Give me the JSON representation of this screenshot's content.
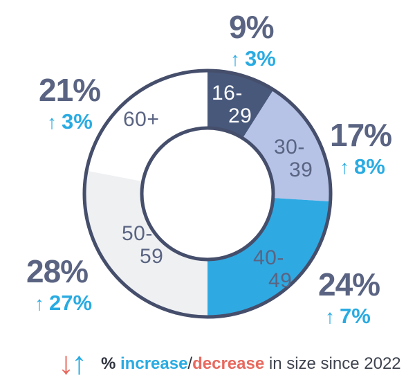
{
  "chart_data": {
    "type": "donut",
    "title": "",
    "description": "Age group share of total with percent change since 2022",
    "unit": "%",
    "ring_outline_color": "#454e6b",
    "value_color": "#5a6482",
    "change_color": "#29abe2",
    "segments": [
      {
        "label": "16-29",
        "label_lines": [
          "16-",
          "29"
        ],
        "value": 9,
        "pct_label": "9%",
        "change_label": "3%",
        "change_direction": "up",
        "color": "#47587b",
        "label_color": "#ffffff"
      },
      {
        "label": "30-39",
        "label_lines": [
          "30-",
          "39"
        ],
        "value": 17,
        "pct_label": "17%",
        "change_label": "8%",
        "change_direction": "up",
        "color": "#b6c3e7",
        "label_color": "#5a6482"
      },
      {
        "label": "40-49",
        "label_lines": [
          "40-",
          "49"
        ],
        "value": 24,
        "pct_label": "24%",
        "change_label": "7%",
        "change_direction": "up",
        "color": "#2fa9e2",
        "label_color": "#5a6482"
      },
      {
        "label": "50-59",
        "label_lines": [
          "50-",
          "59"
        ],
        "value": 28,
        "pct_label": "28%",
        "change_label": "27%",
        "change_direction": "up",
        "color": "#eef0f2",
        "label_color": "#5a6482"
      },
      {
        "label": "60+",
        "label_lines": [
          "60+"
        ],
        "value": 21,
        "pct_label": "21%",
        "change_label": "3%",
        "change_direction": "up",
        "color": "#ffffff",
        "label_color": "#5a6482"
      }
    ]
  },
  "icons": {
    "up_arrow": "↑",
    "down_arrow": "↓"
  },
  "legend": {
    "arrow_down_color": "#e8695f",
    "arrow_up_color": "#29abe2",
    "parts": [
      {
        "text": "% ",
        "color": "#2f333e",
        "bold": true
      },
      {
        "text": "increase",
        "color": "#29abe2",
        "bold": true
      },
      {
        "text": "/",
        "color": "#2f333e",
        "bold": false
      },
      {
        "text": "decrease",
        "color": "#e8695f",
        "bold": true
      },
      {
        "text": " in size since 2022",
        "color": "#3e434e",
        "bold": false
      }
    ]
  }
}
